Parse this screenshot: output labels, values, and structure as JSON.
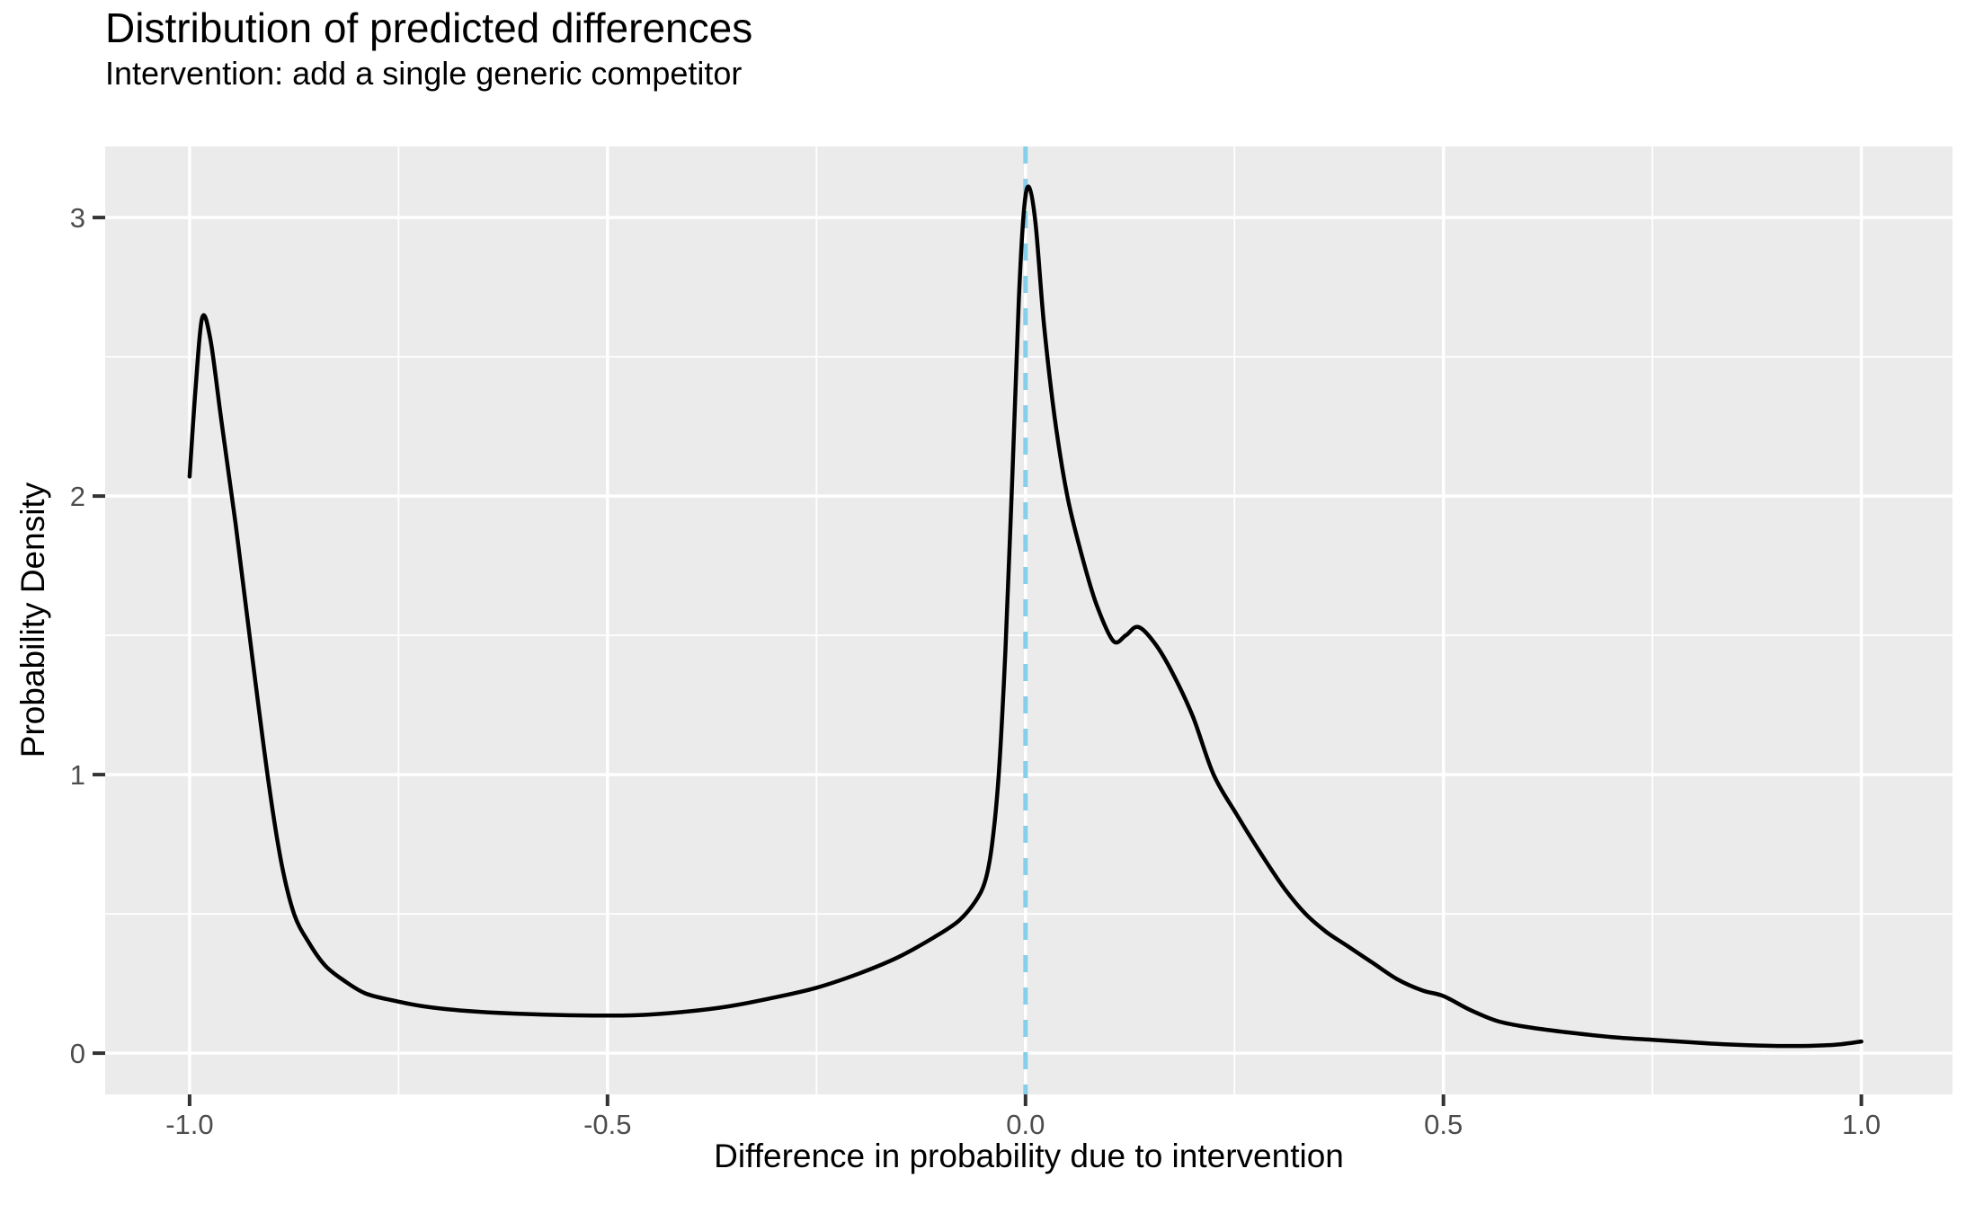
{
  "chart_data": {
    "type": "line",
    "title": "Distribution of predicted differences",
    "subtitle": "Intervention: add a single generic competitor",
    "xlabel": "Difference in probability due to intervention",
    "ylabel": "Probability Density",
    "xlim": [
      -1.101,
      1.109
    ],
    "ylim": [
      -0.148,
      3.255
    ],
    "x_ticks": [
      -1.0,
      -0.5,
      0.0,
      0.5,
      1.0
    ],
    "x_tick_labels": [
      "-1.0",
      "-0.5",
      "0.0",
      "0.5",
      "1.0"
    ],
    "x_minor_ticks": [
      -0.75,
      -0.25,
      0.25,
      0.75
    ],
    "y_ticks": [
      0,
      1,
      2,
      3
    ],
    "y_tick_labels": [
      "0",
      "1",
      "2",
      "3"
    ],
    "y_minor_ticks": [
      0.5,
      1.5,
      2.5
    ],
    "grid": "white major and minor gridlines on grey panel, no legend",
    "vline": {
      "x": 0.0,
      "style": "dashed",
      "color": "#87CEEB"
    },
    "series": [
      {
        "name": "density",
        "color": "#000000",
        "points": [
          [
            -1.0,
            2.07
          ],
          [
            -0.993,
            2.38
          ],
          [
            -0.985,
            2.64
          ],
          [
            -0.975,
            2.56
          ],
          [
            -0.962,
            2.27
          ],
          [
            -0.945,
            1.9
          ],
          [
            -0.925,
            1.42
          ],
          [
            -0.905,
            0.96
          ],
          [
            -0.89,
            0.68
          ],
          [
            -0.875,
            0.5
          ],
          [
            -0.858,
            0.4
          ],
          [
            -0.838,
            0.315
          ],
          [
            -0.815,
            0.26
          ],
          [
            -0.79,
            0.215
          ],
          [
            -0.758,
            0.19
          ],
          [
            -0.72,
            0.168
          ],
          [
            -0.67,
            0.152
          ],
          [
            -0.61,
            0.142
          ],
          [
            -0.54,
            0.136
          ],
          [
            -0.47,
            0.136
          ],
          [
            -0.41,
            0.148
          ],
          [
            -0.355,
            0.168
          ],
          [
            -0.3,
            0.2
          ],
          [
            -0.25,
            0.235
          ],
          [
            -0.2,
            0.285
          ],
          [
            -0.152,
            0.345
          ],
          [
            -0.11,
            0.415
          ],
          [
            -0.08,
            0.475
          ],
          [
            -0.06,
            0.545
          ],
          [
            -0.048,
            0.62
          ],
          [
            -0.04,
            0.75
          ],
          [
            -0.032,
            1.0
          ],
          [
            -0.024,
            1.45
          ],
          [
            -0.016,
            2.05
          ],
          [
            -0.008,
            2.7
          ],
          [
            -0.002,
            3.02
          ],
          [
            0.004,
            3.11
          ],
          [
            0.012,
            2.98
          ],
          [
            0.022,
            2.62
          ],
          [
            0.035,
            2.28
          ],
          [
            0.05,
            2.0
          ],
          [
            0.068,
            1.78
          ],
          [
            0.085,
            1.61
          ],
          [
            0.105,
            1.48
          ],
          [
            0.12,
            1.5
          ],
          [
            0.135,
            1.53
          ],
          [
            0.155,
            1.47
          ],
          [
            0.175,
            1.37
          ],
          [
            0.2,
            1.21
          ],
          [
            0.225,
            1.0
          ],
          [
            0.252,
            0.86
          ],
          [
            0.282,
            0.715
          ],
          [
            0.31,
            0.59
          ],
          [
            0.335,
            0.5
          ],
          [
            0.36,
            0.435
          ],
          [
            0.385,
            0.385
          ],
          [
            0.415,
            0.325
          ],
          [
            0.445,
            0.265
          ],
          [
            0.475,
            0.225
          ],
          [
            0.5,
            0.205
          ],
          [
            0.532,
            0.155
          ],
          [
            0.565,
            0.115
          ],
          [
            0.6,
            0.094
          ],
          [
            0.645,
            0.076
          ],
          [
            0.7,
            0.058
          ],
          [
            0.75,
            0.048
          ],
          [
            0.8,
            0.038
          ],
          [
            0.85,
            0.03
          ],
          [
            0.9,
            0.026
          ],
          [
            0.945,
            0.027
          ],
          [
            0.975,
            0.032
          ],
          [
            1.0,
            0.042
          ]
        ]
      }
    ]
  },
  "style": {
    "panel_bg": "#EBEBEB",
    "grid_color": "#FFFFFF",
    "curve_color": "#000000",
    "vline_color": "#87CEEB",
    "tick_mark_color": "#333333",
    "tick_label_color": "#4D4D4D",
    "title_color": "#000000"
  }
}
